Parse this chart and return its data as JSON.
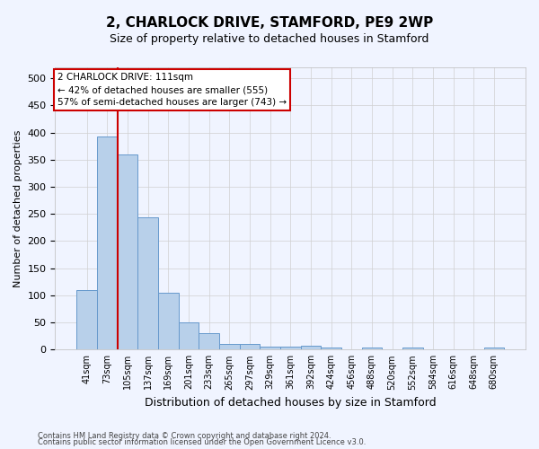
{
  "title": "2, CHARLOCK DRIVE, STAMFORD, PE9 2WP",
  "subtitle": "Size of property relative to detached houses in Stamford",
  "xlabel": "Distribution of detached houses by size in Stamford",
  "ylabel": "Number of detached properties",
  "footer_line1": "Contains HM Land Registry data © Crown copyright and database right 2024.",
  "footer_line2": "Contains public sector information licensed under the Open Government Licence v3.0.",
  "bin_labels": [
    "41sqm",
    "73sqm",
    "105sqm",
    "137sqm",
    "169sqm",
    "201sqm",
    "233sqm",
    "265sqm",
    "297sqm",
    "329sqm",
    "361sqm",
    "392sqm",
    "424sqm",
    "456sqm",
    "488sqm",
    "520sqm",
    "552sqm",
    "584sqm",
    "616sqm",
    "648sqm",
    "680sqm"
  ],
  "bar_heights": [
    110,
    393,
    360,
    243,
    105,
    50,
    30,
    10,
    10,
    6,
    6,
    7,
    3,
    0,
    4,
    0,
    4,
    0,
    0,
    0,
    4
  ],
  "bar_color": "#b8d0ea",
  "bar_edge_color": "#6699cc",
  "red_line_index": 1.5,
  "ylim": [
    0,
    520
  ],
  "yticks": [
    0,
    50,
    100,
    150,
    200,
    250,
    300,
    350,
    400,
    450,
    500
  ],
  "annotation_line1": "2 CHARLOCK DRIVE: 111sqm",
  "annotation_line2": "← 42% of detached houses are smaller (555)",
  "annotation_line3": "57% of semi-detached houses are larger (743) →",
  "annotation_box_color": "#ffffff",
  "annotation_box_edge_color": "#cc0000",
  "bg_color": "#f0f4ff",
  "grid_color": "#d0d0d0",
  "title_fontsize": 11,
  "subtitle_fontsize": 9
}
